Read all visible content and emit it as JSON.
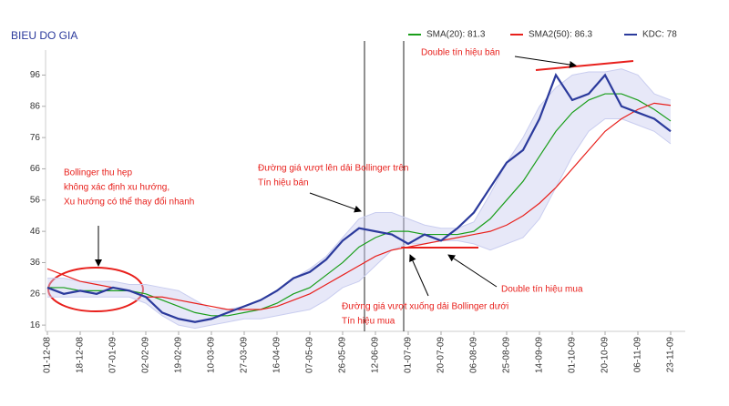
{
  "chart_data": {
    "type": "line",
    "title": "BIEU DO GIA",
    "categories": [
      "01-12-08",
      null,
      "18-12-08",
      null,
      "07-01-09",
      null,
      "02-02-09",
      null,
      "19-02-09",
      null,
      "10-03-09",
      null,
      "27-03-09",
      null,
      "16-04-09",
      null,
      "07-05-09",
      null,
      "26-05-09",
      null,
      "12-06-09",
      null,
      "01-07-09",
      null,
      "20-07-09",
      null,
      "06-08-09",
      null,
      "25-08-09",
      null,
      "14-09-09",
      null,
      "01-10-09",
      null,
      "20-10-09",
      null,
      "06-11-09",
      null,
      "23-11-09"
    ],
    "series": [
      {
        "name": "SMA(20): 81.3",
        "color": "#1a9e1a",
        "values": [
          28,
          28,
          27,
          27,
          27,
          27,
          26,
          24,
          22,
          20,
          19,
          19,
          20,
          21,
          23,
          26,
          28,
          32,
          36,
          41,
          44,
          46,
          46,
          45,
          45,
          45,
          46,
          50,
          56,
          62,
          70,
          78,
          84,
          88,
          90,
          90,
          88,
          85,
          81.3
        ]
      },
      {
        "name": "SMA2(50): 86.3",
        "color": "#e8201c",
        "values": [
          34,
          32,
          30,
          29,
          28,
          27,
          25,
          25,
          24,
          23,
          22,
          21,
          21,
          21,
          22,
          24,
          26,
          29,
          32,
          35,
          38,
          40,
          41,
          42,
          43,
          44,
          45,
          46,
          48,
          51,
          55,
          60,
          66,
          72,
          78,
          82,
          85,
          87,
          86.3
        ]
      },
      {
        "name": "KDC: 78",
        "color": "#2b3a9c",
        "values": [
          28,
          26,
          27,
          26,
          28,
          27,
          25,
          20,
          18,
          17,
          18,
          20,
          22,
          24,
          27,
          31,
          33,
          37,
          43,
          47,
          46,
          45,
          42,
          45,
          43,
          47,
          52,
          60,
          68,
          72,
          82,
          96,
          88,
          90,
          96,
          86,
          84,
          82,
          78
        ]
      }
    ],
    "band": {
      "color": "#c9cdef",
      "upper": [
        31,
        31,
        30,
        30,
        30,
        29,
        29,
        28,
        27,
        24,
        21,
        21,
        22,
        24,
        27,
        31,
        34,
        38,
        44,
        50,
        52,
        52,
        50,
        48,
        47,
        47,
        49,
        58,
        68,
        76,
        86,
        92,
        96,
        97,
        97,
        98,
        96,
        90,
        88
      ],
      "lower": [
        25,
        25,
        25,
        25,
        25,
        25,
        23,
        19,
        16,
        15,
        16,
        17,
        18,
        18,
        19,
        20,
        21,
        24,
        28,
        30,
        35,
        40,
        42,
        42,
        43,
        43,
        42,
        40,
        42,
        44,
        50,
        60,
        70,
        78,
        82,
        82,
        80,
        78,
        74
      ]
    },
    "ylim": [
      14,
      104
    ],
    "yticks": [
      16,
      26,
      36,
      46,
      56,
      66,
      76,
      86,
      96
    ],
    "annotations": [
      [
        "Bollinger thu hẹp",
        "không xác định xu hướng,",
        "Xu hướng có thể thay đổi nhanh"
      ],
      [
        "Đường giá vượt lên dải Bollinger trên",
        "Tín hiệu bán"
      ],
      [
        "Double tín hiệu bán"
      ],
      [
        "Double tín hiệu mua"
      ],
      [
        "Đường giá vượt xuống  dải Bollinger dưới",
        "Tín hiệu mua"
      ]
    ]
  }
}
